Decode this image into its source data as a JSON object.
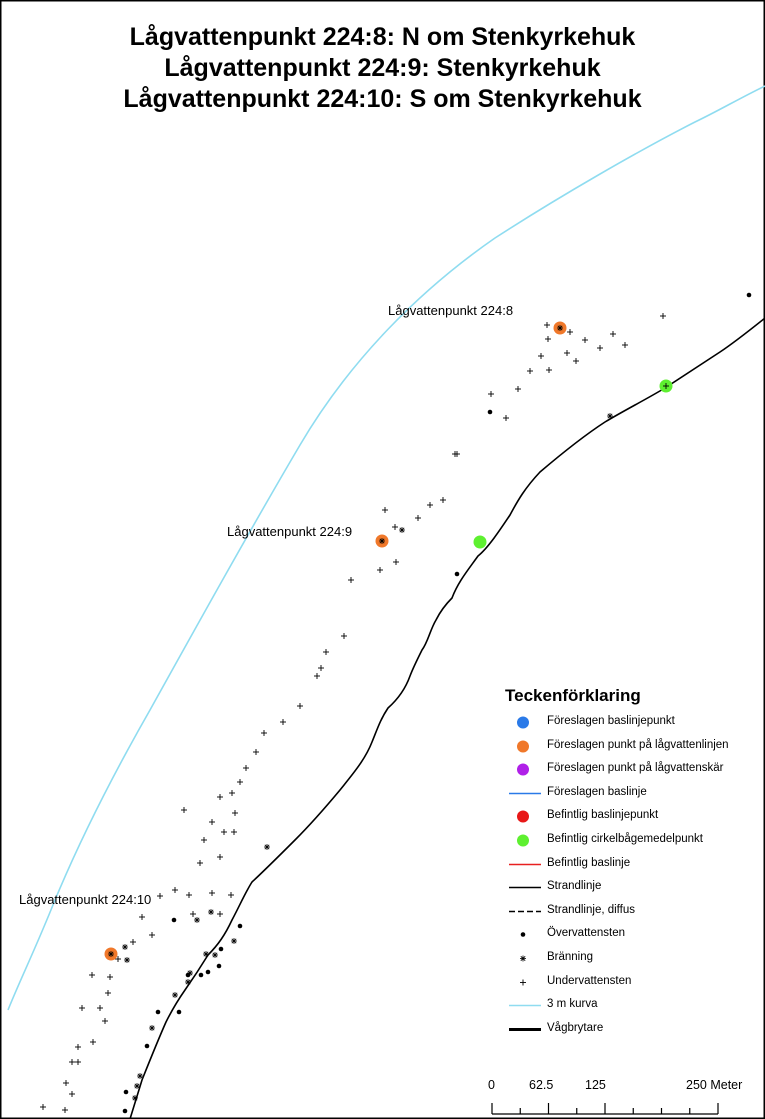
{
  "map": {
    "titles": [
      "Lågvattenpunkt 224:8: N om Stenkyrkehuk",
      "Lågvattenpunkt 224:9: Stenkyrkehuk",
      "Lågvattenpunkt 224:10: S om Stenkyrkehuk"
    ],
    "point_labels": [
      "Lågvattenpunkt 224:8",
      "Lågvattenpunkt 224:9",
      "Lågvattenpunkt 224:10"
    ],
    "colors": {
      "contour": "#8fdcf0",
      "low_water_point": "#f0782a",
      "circle_center": "#5ef030",
      "shoreline": "#000000",
      "frame": "#000000"
    }
  },
  "legend": {
    "title": "Teckenförklaring",
    "items": [
      {
        "label": "Föreslagen baslinjepunkt",
        "symbol": "circle",
        "color": "#2a7ae8"
      },
      {
        "label": "Föreslagen punkt på lågvattenlinjen",
        "symbol": "circle",
        "color": "#f0782a"
      },
      {
        "label": "Föreslagen punkt på lågvattenskär",
        "symbol": "circle",
        "color": "#b020e8"
      },
      {
        "label": "Föreslagen baslinje",
        "symbol": "line",
        "color": "#2a7ae8"
      },
      {
        "label": "Befintlig baslinjepunkt",
        "symbol": "circle",
        "color": "#e81818"
      },
      {
        "label": "Befintlig cirkelbågemedelpunkt",
        "symbol": "circle",
        "color": "#5ef030"
      },
      {
        "label": "Befintlig baslinje",
        "symbol": "line",
        "color": "#e82020"
      },
      {
        "label": "Strandlinje",
        "symbol": "line",
        "color": "#000000"
      },
      {
        "label": "Strandlinje, diffus",
        "symbol": "dashed-line",
        "color": "#000000"
      },
      {
        "label": "Övervattensten",
        "symbol": "dot",
        "color": "#000000"
      },
      {
        "label": "Bränning",
        "symbol": "asterisk",
        "color": "#000000"
      },
      {
        "label": "Undervattensten",
        "symbol": "plus",
        "color": "#000000"
      },
      {
        "label": "3 m kurva",
        "symbol": "line",
        "color": "#8fdcf0"
      },
      {
        "label": "Vågbrytare",
        "symbol": "thick-line",
        "color": "#000000"
      }
    ]
  },
  "scalebar": {
    "labels": [
      "0",
      "62.5",
      "125",
      "250 Meter"
    ],
    "values": [
      0,
      62.5,
      125,
      250
    ],
    "unit": "Meter"
  }
}
